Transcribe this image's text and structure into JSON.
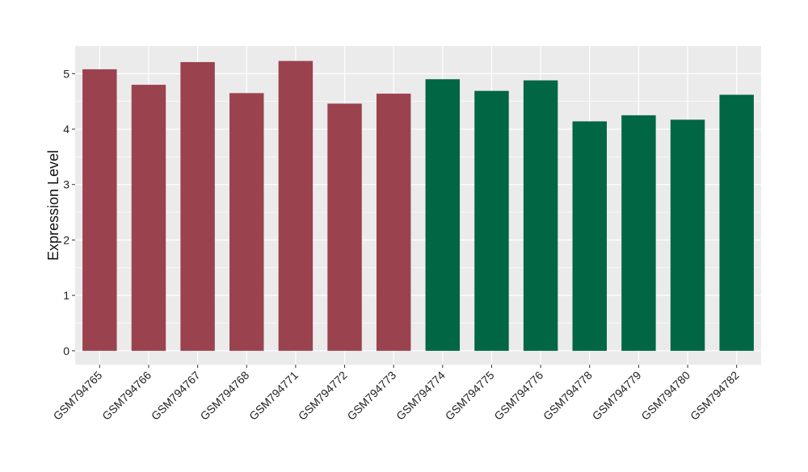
{
  "chart_data": {
    "type": "bar",
    "categories": [
      "GSM794765",
      "GSM794766",
      "GSM794767",
      "GSM794768",
      "GSM794771",
      "GSM794772",
      "GSM794773",
      "GSM794774",
      "GSM794775",
      "GSM794776",
      "GSM794778",
      "GSM794779",
      "GSM794780",
      "GSM794782"
    ],
    "values": [
      5.08,
      4.8,
      5.21,
      4.65,
      5.23,
      4.46,
      4.64,
      4.9,
      4.69,
      4.88,
      4.14,
      4.25,
      4.17,
      4.62
    ],
    "groups": [
      1,
      1,
      1,
      1,
      1,
      1,
      1,
      2,
      2,
      2,
      2,
      2,
      2,
      2
    ],
    "group_colors": {
      "1": "#9b424f",
      "2": "#006644"
    },
    "title": "",
    "xlabel": "",
    "ylabel": "Expression Level",
    "ylim": [
      -0.25,
      5.5
    ],
    "yticks": [
      0,
      1,
      2,
      3,
      4,
      5
    ],
    "grid": true,
    "panel_background": "#ebebeb",
    "gridline_color": "#ffffff"
  }
}
